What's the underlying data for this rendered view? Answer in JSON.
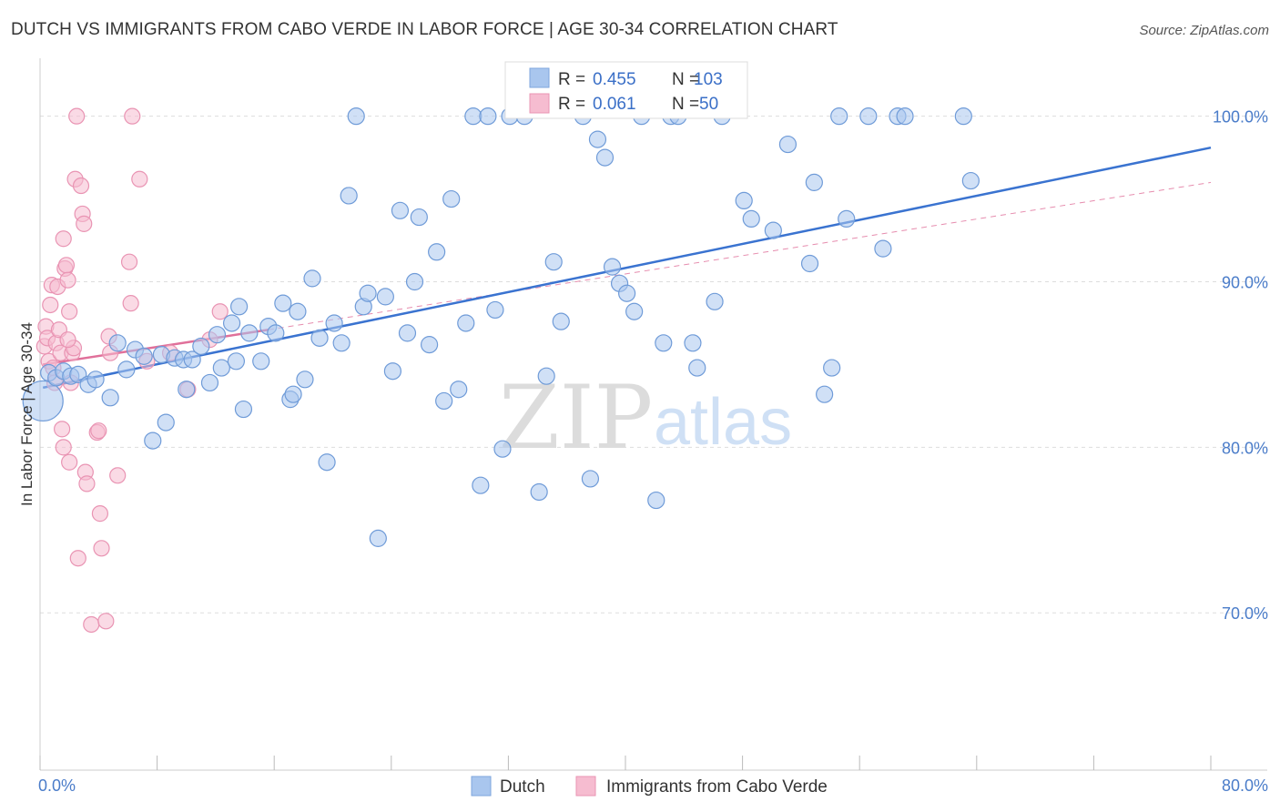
{
  "title": "DUTCH VS IMMIGRANTS FROM CABO VERDE IN LABOR FORCE | AGE 30-34 CORRELATION CHART",
  "source": "Source: ZipAtlas.com",
  "watermark": {
    "zip": "ZIP",
    "atlas": "atlas"
  },
  "colors": {
    "blue": "#3a73d0",
    "blue_fill": "#a9c6ee",
    "pink": "#e0709a",
    "pink_fill": "#f6bcd0",
    "grid": "#dddddd",
    "tick_text": "#4a7cc9"
  },
  "legend_box": {
    "rows": [
      {
        "r_label": "R =",
        "r_value": "0.455",
        "n_label": "N =",
        "n_value": "103"
      },
      {
        "r_label": "R =",
        "r_value": "0.061",
        "n_label": "N =",
        "n_value": "50"
      }
    ]
  },
  "bottom_legend": {
    "dutch": "Dutch",
    "cabo": "Immigrants from Cabo Verde"
  },
  "chart_data": {
    "type": "scatter",
    "xlabel": "",
    "ylabel": "In Labor Force | Age 30-34",
    "xlim": [
      0,
      80
    ],
    "ylim": [
      60.5,
      103.5
    ],
    "x_tick_labels": [
      "0.0%",
      "80.0%"
    ],
    "y_ticks": [
      70,
      80,
      90,
      100
    ],
    "y_tick_labels": [
      "70.0%",
      "80.0%",
      "90.0%",
      "100.0%"
    ],
    "series": [
      {
        "name": "Dutch",
        "r": 0.455,
        "n": 103,
        "trend": {
          "x0": 0.2,
          "y0": 83.6,
          "x1": 80,
          "y1": 98.1,
          "style": "solid"
        },
        "points": [
          [
            0.2,
            82.8
          ],
          [
            0.6,
            84.5
          ],
          [
            1.1,
            84.2
          ],
          [
            1.6,
            84.6
          ],
          [
            2.1,
            84.3
          ],
          [
            2.6,
            84.4
          ],
          [
            3.3,
            83.8
          ],
          [
            3.8,
            84.1
          ],
          [
            4.8,
            83.0
          ],
          [
            5.3,
            86.3
          ],
          [
            5.9,
            84.7
          ],
          [
            6.5,
            85.9
          ],
          [
            7.1,
            85.5
          ],
          [
            7.7,
            80.4
          ],
          [
            8.3,
            85.6
          ],
          [
            8.6,
            81.5
          ],
          [
            9.2,
            85.4
          ],
          [
            9.8,
            85.3
          ],
          [
            10.0,
            83.5
          ],
          [
            10.4,
            85.3
          ],
          [
            11.0,
            86.1
          ],
          [
            11.6,
            83.9
          ],
          [
            12.1,
            86.8
          ],
          [
            12.4,
            84.8
          ],
          [
            13.1,
            87.5
          ],
          [
            13.4,
            85.2
          ],
          [
            13.6,
            88.5
          ],
          [
            13.9,
            82.3
          ],
          [
            14.3,
            86.9
          ],
          [
            15.1,
            85.2
          ],
          [
            15.6,
            87.3
          ],
          [
            16.1,
            86.9
          ],
          [
            16.6,
            88.7
          ],
          [
            17.1,
            82.9
          ],
          [
            17.3,
            83.2
          ],
          [
            17.6,
            88.2
          ],
          [
            18.1,
            84.1
          ],
          [
            18.6,
            90.2
          ],
          [
            19.1,
            86.6
          ],
          [
            19.6,
            79.1
          ],
          [
            20.1,
            87.5
          ],
          [
            20.6,
            86.3
          ],
          [
            21.1,
            95.2
          ],
          [
            21.6,
            100.0
          ],
          [
            22.1,
            88.5
          ],
          [
            22.4,
            89.3
          ],
          [
            23.1,
            74.5
          ],
          [
            23.6,
            89.1
          ],
          [
            24.1,
            84.6
          ],
          [
            24.6,
            94.3
          ],
          [
            25.1,
            86.9
          ],
          [
            25.6,
            90.0
          ],
          [
            25.9,
            93.9
          ],
          [
            26.6,
            86.2
          ],
          [
            27.1,
            91.8
          ],
          [
            27.6,
            82.8
          ],
          [
            28.1,
            95.0
          ],
          [
            28.6,
            83.5
          ],
          [
            29.1,
            87.5
          ],
          [
            29.6,
            100.0
          ],
          [
            30.1,
            77.7
          ],
          [
            30.6,
            100.0
          ],
          [
            31.1,
            88.3
          ],
          [
            31.6,
            79.9
          ],
          [
            32.1,
            100.0
          ],
          [
            33.1,
            100.0
          ],
          [
            34.1,
            77.3
          ],
          [
            34.6,
            84.3
          ],
          [
            35.1,
            91.2
          ],
          [
            35.6,
            87.6
          ],
          [
            37.1,
            100.0
          ],
          [
            37.6,
            78.1
          ],
          [
            38.1,
            98.6
          ],
          [
            38.6,
            97.5
          ],
          [
            39.1,
            90.9
          ],
          [
            39.6,
            89.9
          ],
          [
            40.1,
            89.3
          ],
          [
            40.6,
            88.2
          ],
          [
            41.1,
            100.0
          ],
          [
            42.1,
            76.8
          ],
          [
            42.6,
            86.3
          ],
          [
            43.1,
            100.0
          ],
          [
            43.6,
            100.0
          ],
          [
            44.6,
            86.3
          ],
          [
            44.9,
            84.8
          ],
          [
            46.1,
            88.8
          ],
          [
            46.6,
            100.0
          ],
          [
            48.1,
            94.9
          ],
          [
            48.6,
            93.8
          ],
          [
            50.1,
            93.1
          ],
          [
            51.1,
            98.3
          ],
          [
            52.6,
            91.1
          ],
          [
            52.9,
            96.0
          ],
          [
            53.6,
            83.2
          ],
          [
            54.1,
            84.8
          ],
          [
            54.6,
            100.0
          ],
          [
            55.1,
            93.8
          ],
          [
            56.6,
            100.0
          ],
          [
            57.6,
            92.0
          ],
          [
            58.6,
            100.0
          ],
          [
            59.1,
            100.0
          ],
          [
            63.1,
            100.0
          ],
          [
            63.6,
            96.1
          ]
        ]
      },
      {
        "name": "Immigrants from Cabo Verde",
        "r": 0.061,
        "n": 50,
        "trend": {
          "x0": 0.2,
          "y0": 85.0,
          "x1": 15.6,
          "y1": 87.1,
          "style": "solid",
          "dashed_to": {
            "x": 80,
            "y": 96.0
          }
        },
        "points": [
          [
            0.3,
            86.1
          ],
          [
            0.4,
            87.3
          ],
          [
            0.5,
            86.6
          ],
          [
            0.6,
            85.2
          ],
          [
            0.7,
            88.6
          ],
          [
            0.8,
            89.8
          ],
          [
            0.9,
            84.8
          ],
          [
            1.0,
            83.9
          ],
          [
            1.1,
            86.3
          ],
          [
            1.2,
            89.7
          ],
          [
            1.3,
            87.1
          ],
          [
            1.4,
            85.7
          ],
          [
            1.5,
            81.1
          ],
          [
            1.6,
            92.6
          ],
          [
            1.7,
            90.8
          ],
          [
            1.8,
            91.0
          ],
          [
            1.9,
            90.1
          ],
          [
            2.0,
            79.1
          ],
          [
            2.1,
            83.9
          ],
          [
            2.2,
            85.7
          ],
          [
            1.6,
            80.0
          ],
          [
            2.3,
            86.0
          ],
          [
            2.4,
            96.2
          ],
          [
            2.5,
            100.0
          ],
          [
            2.6,
            73.3
          ],
          [
            2.8,
            95.8
          ],
          [
            2.9,
            94.1
          ],
          [
            3.0,
            93.5
          ],
          [
            3.1,
            78.5
          ],
          [
            3.2,
            77.8
          ],
          [
            3.5,
            69.3
          ],
          [
            3.9,
            80.9
          ],
          [
            4.0,
            81.0
          ],
          [
            4.1,
            76.0
          ],
          [
            4.2,
            73.9
          ],
          [
            4.5,
            69.5
          ],
          [
            4.7,
            86.7
          ],
          [
            4.8,
            85.7
          ],
          [
            5.3,
            78.3
          ],
          [
            6.1,
            91.2
          ],
          [
            6.2,
            88.7
          ],
          [
            6.3,
            100.0
          ],
          [
            6.8,
            96.2
          ],
          [
            7.3,
            85.2
          ],
          [
            8.9,
            85.7
          ],
          [
            10.1,
            83.5
          ],
          [
            11.6,
            86.5
          ],
          [
            12.3,
            88.2
          ],
          [
            2.0,
            88.2
          ],
          [
            1.9,
            86.5
          ]
        ]
      }
    ]
  }
}
